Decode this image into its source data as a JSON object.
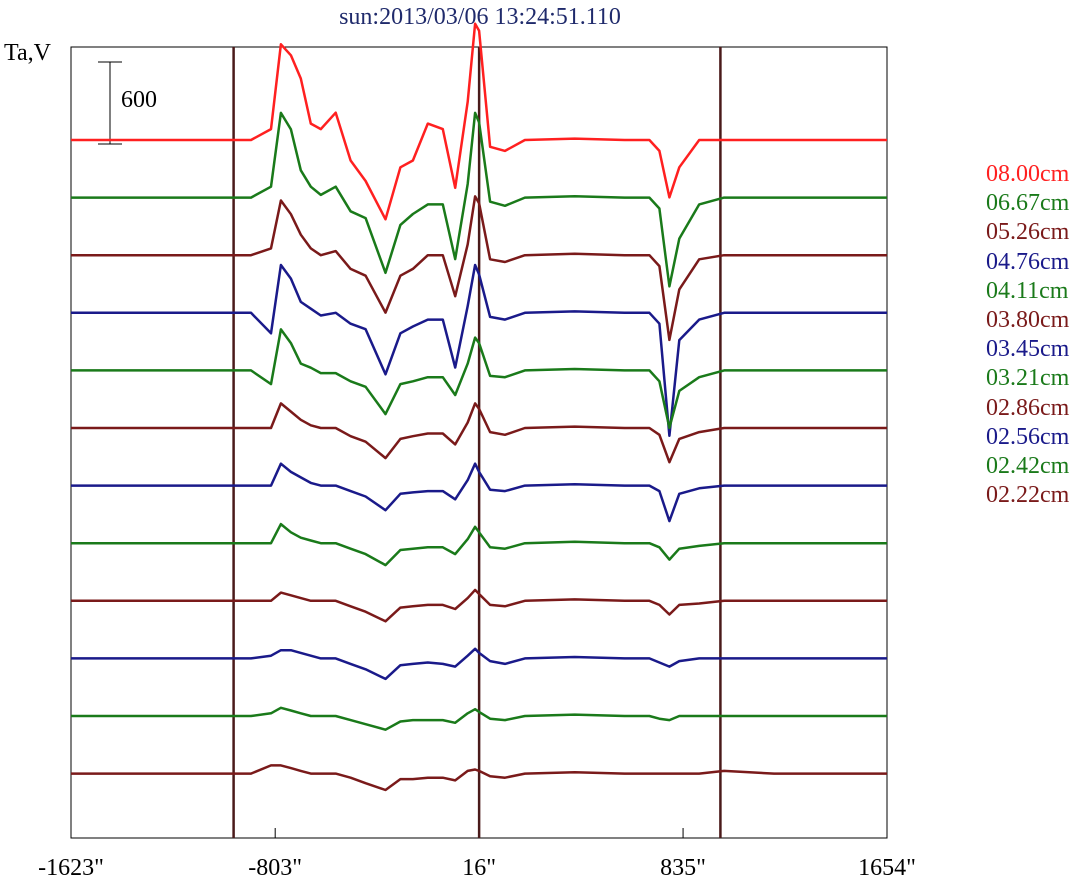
{
  "chart_data": {
    "type": "line",
    "title": "sun:2013/03/06 13:24:51.110",
    "ylabel": "Ta,V",
    "scale_bar": {
      "value": 600,
      "label": "600"
    },
    "xlim": [
      -1623,
      1654
    ],
    "x_ticks": [
      {
        "value": -1623,
        "label": "-1623\""
      },
      {
        "value": -803,
        "label": "-803\""
      },
      {
        "value": 16,
        "label": "16\""
      },
      {
        "value": 835,
        "label": "835\""
      },
      {
        "value": 1654,
        "label": "1654\""
      }
    ],
    "vertical_markers": [
      -970,
      16,
      985
    ],
    "x": [
      -1623,
      -1400,
      -1200,
      -1000,
      -900,
      -820,
      -780,
      -740,
      -700,
      -660,
      -620,
      -560,
      -500,
      -440,
      -360,
      -300,
      -250,
      -190,
      -130,
      -80,
      -30,
      0,
      16,
      60,
      120,
      200,
      400,
      600,
      700,
      740,
      780,
      820,
      900,
      1000,
      1200,
      1400,
      1654
    ],
    "series": [
      {
        "name": "08.00cm",
        "color": "#ff2020",
        "values": [
          0,
          0,
          0,
          0,
          0,
          80,
          700,
          620,
          450,
          120,
          80,
          200,
          -150,
          -300,
          -580,
          -200,
          -150,
          120,
          80,
          -350,
          280,
          850,
          800,
          -50,
          -80,
          0,
          10,
          0,
          0,
          -80,
          -420,
          -200,
          0,
          0,
          0,
          0,
          0
        ]
      },
      {
        "name": "06.67cm",
        "color": "#1a7a1a",
        "values": [
          0,
          0,
          0,
          0,
          0,
          80,
          620,
          500,
          200,
          80,
          20,
          80,
          -100,
          -150,
          -550,
          -200,
          -120,
          -50,
          -50,
          -450,
          100,
          620,
          550,
          -30,
          -60,
          0,
          10,
          0,
          0,
          -80,
          -650,
          -300,
          -50,
          0,
          0,
          0,
          0
        ]
      },
      {
        "name": "05.26cm",
        "color": "#7a1a1a",
        "values": [
          0,
          0,
          0,
          0,
          0,
          50,
          400,
          300,
          150,
          50,
          0,
          30,
          -100,
          -150,
          -420,
          -150,
          -100,
          0,
          0,
          -300,
          80,
          430,
          380,
          -30,
          -50,
          0,
          10,
          0,
          0,
          -80,
          -620,
          -250,
          -30,
          0,
          0,
          0,
          0
        ]
      },
      {
        "name": "04.76cm",
        "color": "#1a1a8a",
        "values": [
          0,
          0,
          0,
          0,
          0,
          -150,
          350,
          250,
          80,
          30,
          -20,
          0,
          -80,
          -120,
          -450,
          -150,
          -100,
          -50,
          -50,
          -400,
          50,
          350,
          280,
          -30,
          -50,
          0,
          10,
          0,
          0,
          -80,
          -900,
          -200,
          -50,
          0,
          0,
          0,
          0
        ]
      },
      {
        "name": "04.11cm",
        "color": "#1a7a1a",
        "values": [
          0,
          0,
          0,
          0,
          0,
          -100,
          300,
          200,
          50,
          20,
          -20,
          -20,
          -80,
          -120,
          -320,
          -100,
          -80,
          -50,
          -50,
          -180,
          50,
          240,
          200,
          -40,
          -50,
          0,
          10,
          0,
          0,
          -80,
          -420,
          -150,
          -50,
          0,
          0,
          0,
          0
        ]
      },
      {
        "name": "03.80cm",
        "color": "#7a1a1a",
        "values": [
          0,
          0,
          0,
          0,
          0,
          0,
          180,
          120,
          60,
          20,
          0,
          0,
          -60,
          -100,
          -220,
          -80,
          -60,
          -40,
          -40,
          -120,
          40,
          180,
          140,
          -30,
          -50,
          0,
          10,
          0,
          0,
          -50,
          -250,
          -80,
          -30,
          0,
          0,
          0,
          0
        ]
      },
      {
        "name": "03.45cm",
        "color": "#1a1a8a",
        "values": [
          0,
          0,
          0,
          0,
          0,
          0,
          160,
          100,
          60,
          20,
          0,
          0,
          -40,
          -80,
          -180,
          -60,
          -50,
          -40,
          -40,
          -100,
          40,
          160,
          100,
          -30,
          -40,
          0,
          10,
          0,
          0,
          -40,
          -260,
          -60,
          -20,
          0,
          0,
          0,
          0
        ]
      },
      {
        "name": "03.21cm",
        "color": "#1a7a1a",
        "values": [
          0,
          0,
          0,
          0,
          0,
          0,
          140,
          80,
          40,
          20,
          0,
          0,
          -40,
          -80,
          -160,
          -50,
          -40,
          -30,
          -30,
          -80,
          30,
          120,
          80,
          -30,
          -40,
          0,
          10,
          0,
          0,
          -30,
          -120,
          -40,
          -20,
          0,
          0,
          0,
          0
        ]
      },
      {
        "name": "02.86cm",
        "color": "#7a1a1a",
        "values": [
          0,
          0,
          0,
          0,
          0,
          0,
          60,
          40,
          20,
          0,
          0,
          0,
          -40,
          -80,
          -150,
          -50,
          -40,
          -30,
          -30,
          -60,
          20,
          80,
          50,
          -30,
          -40,
          0,
          10,
          0,
          0,
          -30,
          -100,
          -30,
          -20,
          0,
          0,
          0,
          0
        ]
      },
      {
        "name": "02.56cm",
        "color": "#1a1a8a",
        "values": [
          0,
          0,
          0,
          0,
          0,
          20,
          60,
          60,
          40,
          20,
          0,
          0,
          -40,
          -80,
          -150,
          -50,
          -40,
          -30,
          -40,
          -60,
          20,
          70,
          40,
          -20,
          -40,
          0,
          10,
          0,
          0,
          -30,
          -60,
          -20,
          0,
          0,
          0,
          0,
          0
        ]
      },
      {
        "name": "02.42cm",
        "color": "#1a7a1a",
        "values": [
          0,
          0,
          0,
          0,
          0,
          20,
          60,
          40,
          20,
          0,
          0,
          0,
          -30,
          -60,
          -100,
          -40,
          -30,
          -30,
          -30,
          -50,
          20,
          50,
          30,
          -20,
          -30,
          0,
          10,
          0,
          0,
          -20,
          -30,
          0,
          0,
          0,
          0,
          0,
          0
        ]
      },
      {
        "name": "02.22cm",
        "color": "#7a1a1a",
        "values": [
          0,
          0,
          0,
          0,
          0,
          60,
          60,
          40,
          20,
          0,
          0,
          0,
          -30,
          -70,
          -120,
          -40,
          -40,
          -30,
          -30,
          -50,
          20,
          30,
          20,
          -20,
          -30,
          0,
          10,
          0,
          0,
          0,
          0,
          0,
          0,
          20,
          0,
          0,
          0
        ]
      }
    ]
  }
}
